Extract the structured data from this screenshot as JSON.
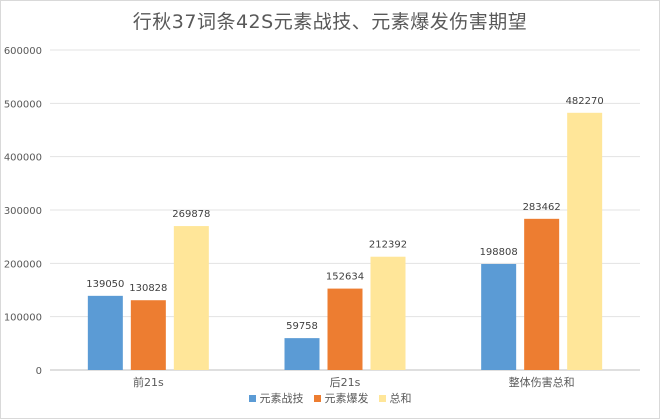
{
  "chart_data": {
    "type": "bar",
    "title": "行秋37词条42S元素战技、元素爆发伤害期望",
    "categories": [
      "前21s",
      "后21s",
      "整体伤害总和"
    ],
    "series": [
      {
        "name": "元素战技",
        "color": "#5b9bd5",
        "values": [
          139050,
          59758,
          198808
        ]
      },
      {
        "name": "元素爆发",
        "color": "#ed7d31",
        "values": [
          130828,
          152634,
          283462
        ]
      },
      {
        "name": "总和",
        "color": "#ffe699",
        "values": [
          269878,
          212392,
          482270
        ]
      }
    ],
    "ylim": [
      0,
      600000
    ],
    "yticks": [
      0,
      100000,
      200000,
      300000,
      400000,
      500000,
      600000
    ],
    "grid": true,
    "legend_position": "bottom",
    "xlabel": "",
    "ylabel": ""
  }
}
